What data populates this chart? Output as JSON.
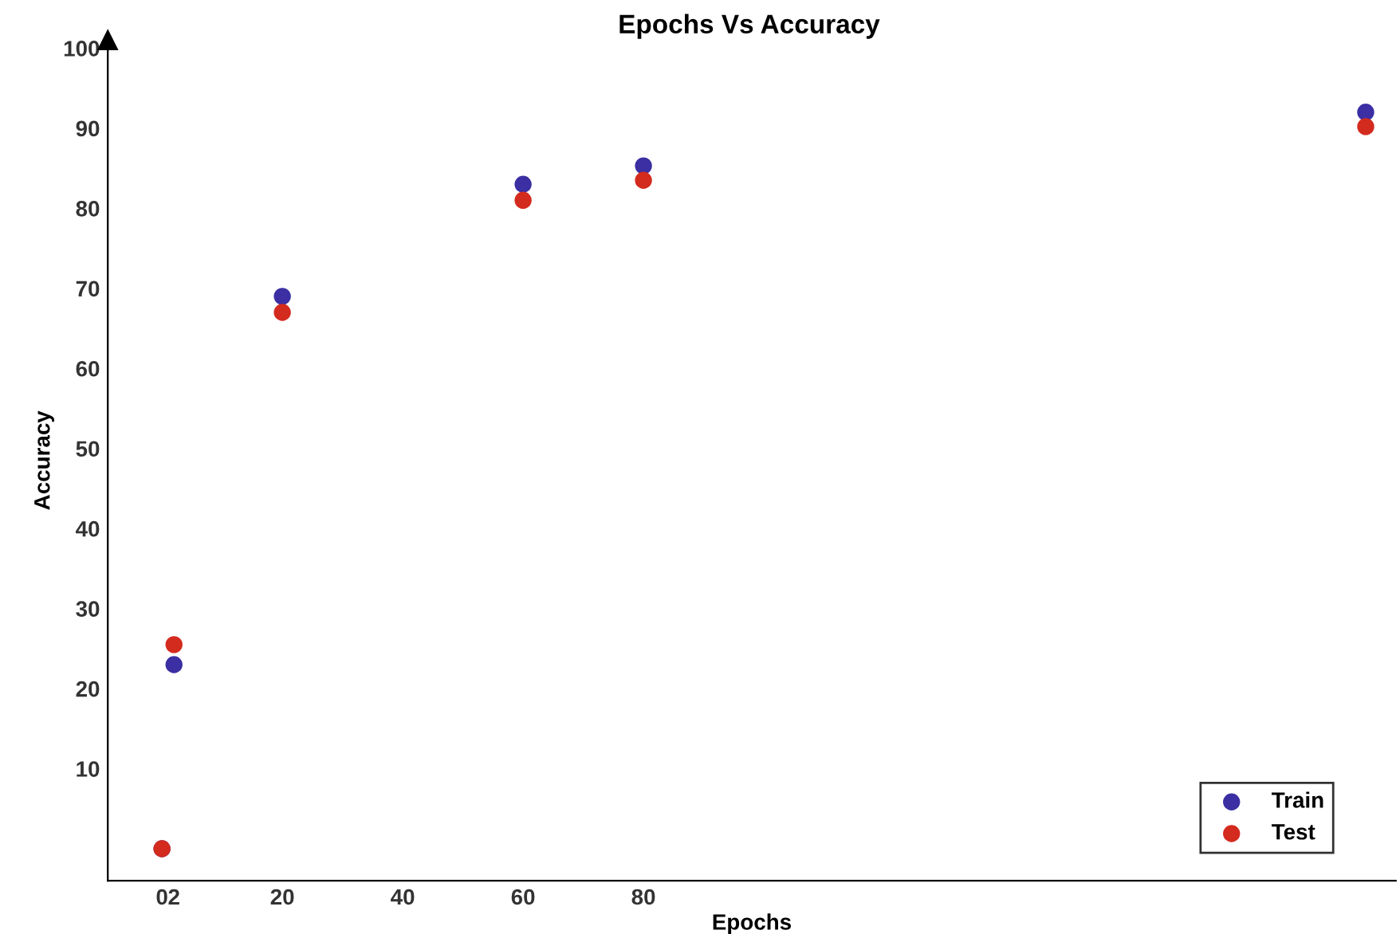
{
  "chart_data": {
    "type": "scatter",
    "title": "Epochs Vs Accuracy",
    "xlabel": "Epochs",
    "ylabel": "Accuracy",
    "series": [
      {
        "name": "Train",
        "color": "#3b2fa3",
        "x": [
          0,
          2,
          20,
          60,
          80,
          200
        ],
        "values": [
          0,
          23,
          69,
          83,
          85.3,
          92
        ]
      },
      {
        "name": "Test",
        "color": "#d42b1f",
        "x": [
          0,
          2,
          20,
          60,
          80,
          200
        ],
        "values": [
          0,
          25.5,
          67,
          81,
          83.5,
          90.2
        ]
      }
    ],
    "xlim": [
      -9,
      205
    ],
    "xticks": [
      0,
      2,
      20,
      40,
      60,
      80
    ],
    "ylim": [
      -4,
      101
    ],
    "yticks": [
      10,
      20,
      30,
      40,
      50,
      60,
      70,
      80,
      90,
      100
    ],
    "marker": "circle",
    "grid": false,
    "legend": "bottom right"
  }
}
